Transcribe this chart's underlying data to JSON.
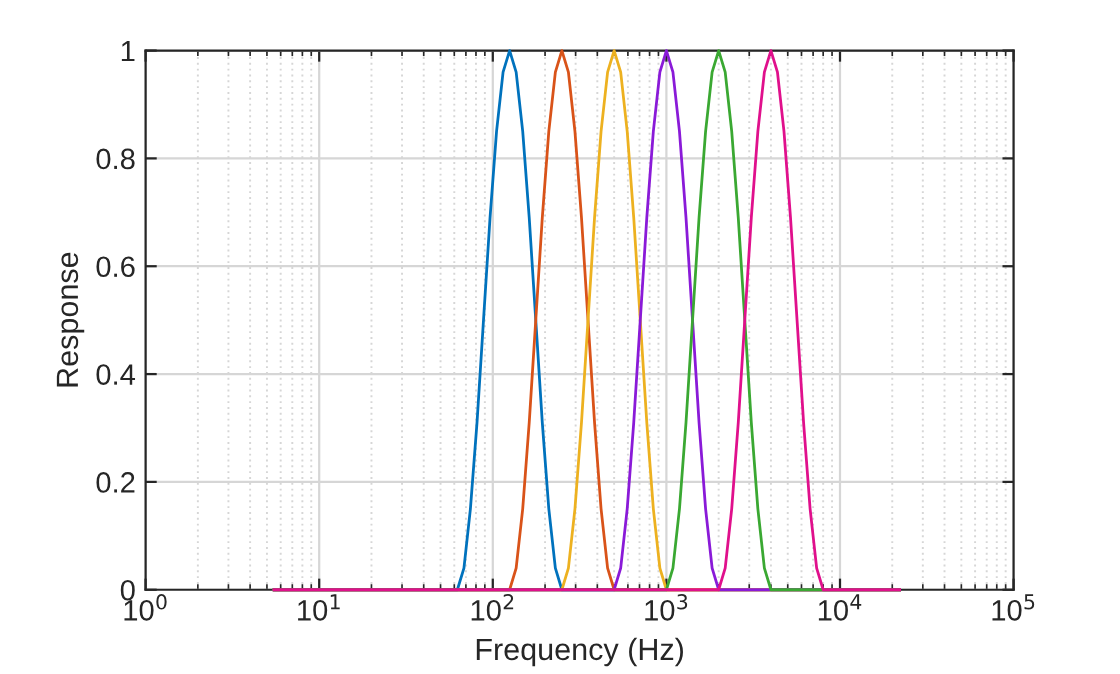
{
  "chart_data": {
    "type": "line",
    "xlabel": "Frequency (Hz)",
    "ylabel": "Response",
    "log": "x",
    "grid": true,
    "marker": "none",
    "line_style": "solid",
    "xlim": [
      1,
      100000
    ],
    "xticks": [
      {
        "value": 1,
        "label": "10$^{0}$"
      },
      {
        "value": 10,
        "label": "10$^{1}$"
      },
      {
        "value": 100,
        "label": "10$^{2}$"
      },
      {
        "value": 1000,
        "label": "10$^{3}$"
      },
      {
        "value": 10000,
        "label": "10$^{4}$"
      },
      {
        "value": 100000,
        "label": "10$^{5}$"
      }
    ],
    "ylim": [
      0,
      1
    ],
    "yticks": [
      0,
      0.2,
      0.4,
      0.6,
      0.8,
      1
    ],
    "series": [
      {
        "color": "#0072bd",
        "x": [
          5.5,
          62.5,
          68.2,
          74.3,
          81.1,
          88.4,
          96.4,
          105.1,
          114.6,
          125,
          136.3,
          148.7,
          162.1,
          176.8,
          192.8,
          210.2,
          229.3,
          250,
          22050
        ],
        "values": [
          0,
          0,
          0.04,
          0.15,
          0.31,
          0.5,
          0.69,
          0.85,
          0.96,
          1,
          0.96,
          0.85,
          0.69,
          0.5,
          0.31,
          0.15,
          0.04,
          0,
          0
        ]
      },
      {
        "color": "#d95319",
        "x": [
          5.5,
          125,
          136.3,
          148.7,
          162.1,
          176.8,
          192.8,
          210.2,
          229.3,
          250,
          272.6,
          297.3,
          324.2,
          353.6,
          385.6,
          420.4,
          458.5,
          500,
          22050
        ],
        "values": [
          0,
          0,
          0.04,
          0.15,
          0.31,
          0.5,
          0.69,
          0.85,
          0.96,
          1,
          0.96,
          0.85,
          0.69,
          0.5,
          0.31,
          0.15,
          0.04,
          0,
          0
        ]
      },
      {
        "color": "#edb120",
        "x": [
          5.5,
          250,
          272.6,
          297.3,
          324.2,
          353.6,
          385.6,
          420.4,
          458.5,
          500,
          545.3,
          594.6,
          648.4,
          707.1,
          771.1,
          840.9,
          917,
          1000,
          22050
        ],
        "values": [
          0,
          0,
          0.04,
          0.15,
          0.31,
          0.5,
          0.69,
          0.85,
          0.96,
          1,
          0.96,
          0.85,
          0.69,
          0.5,
          0.31,
          0.15,
          0.04,
          0,
          0
        ]
      },
      {
        "color": "#8a1ad8",
        "x": [
          5.5,
          500,
          545.3,
          594.6,
          648.4,
          707.1,
          771.1,
          840.9,
          917,
          1000,
          1090.5,
          1189.2,
          1296.8,
          1414.2,
          1542.2,
          1681.8,
          1834,
          2000,
          22050
        ],
        "values": [
          0,
          0,
          0.04,
          0.15,
          0.31,
          0.5,
          0.69,
          0.85,
          0.96,
          1,
          0.96,
          0.85,
          0.69,
          0.5,
          0.31,
          0.15,
          0.04,
          0,
          0
        ]
      },
      {
        "color": "#3aa832",
        "x": [
          5.5,
          1000,
          1090.5,
          1189.2,
          1296.8,
          1414.2,
          1542.2,
          1681.8,
          1834,
          2000,
          2181,
          2378,
          2594,
          2828,
          3084,
          3364,
          3668,
          4000,
          22050
        ],
        "values": [
          0,
          0,
          0.04,
          0.15,
          0.31,
          0.5,
          0.69,
          0.85,
          0.96,
          1,
          0.96,
          0.85,
          0.69,
          0.5,
          0.31,
          0.15,
          0.04,
          0,
          0
        ]
      },
      {
        "color": "#e0108c",
        "x": [
          5.5,
          2000,
          2181,
          2378,
          2594,
          2828,
          3084,
          3364,
          3668,
          4000,
          4362,
          4757,
          5187,
          5657,
          6169,
          6727,
          7336,
          8000,
          22050
        ],
        "values": [
          0,
          0,
          0.04,
          0.15,
          0.31,
          0.5,
          0.69,
          0.85,
          0.96,
          1,
          0.96,
          0.85,
          0.69,
          0.5,
          0.31,
          0.15,
          0.04,
          0,
          0
        ]
      }
    ]
  }
}
